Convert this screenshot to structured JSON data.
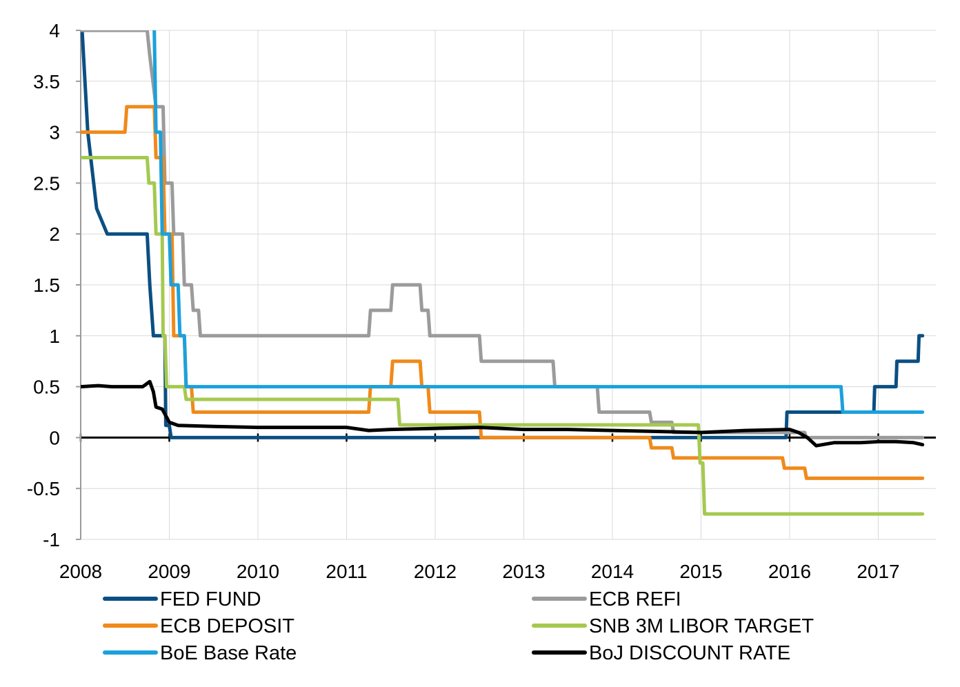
{
  "chart_data": {
    "type": "line",
    "title": "",
    "xlabel": "",
    "ylabel": "",
    "xlim": [
      2008.0,
      2017.65
    ],
    "ylim": [
      -1,
      4
    ],
    "x_ticks": [
      "2008",
      "2009",
      "2010",
      "2011",
      "2012",
      "2013",
      "2014",
      "2015",
      "2016",
      "2017"
    ],
    "y_ticks": [
      "4",
      "3.5",
      "3",
      "2.5",
      "2",
      "1.5",
      "1",
      "0.5",
      "0",
      "-0.5",
      "-1"
    ],
    "grid": true,
    "legend_position": "bottom",
    "series": [
      {
        "name": "FED FUND",
        "color": "#0b4f82",
        "points": [
          [
            2008.0,
            4.25
          ],
          [
            2008.08,
            3.0
          ],
          [
            2008.18,
            2.25
          ],
          [
            2008.3,
            2.0
          ],
          [
            2008.75,
            2.0
          ],
          [
            2008.78,
            1.5
          ],
          [
            2008.82,
            1.0
          ],
          [
            2008.95,
            1.0
          ],
          [
            2008.96,
            0.12
          ],
          [
            2009.0,
            0.12
          ],
          [
            2009.02,
            0.0
          ],
          [
            2015.96,
            0.0
          ],
          [
            2015.97,
            0.25
          ],
          [
            2016.95,
            0.25
          ],
          [
            2016.96,
            0.5
          ],
          [
            2017.2,
            0.5
          ],
          [
            2017.21,
            0.75
          ],
          [
            2017.45,
            0.75
          ],
          [
            2017.46,
            1.0
          ],
          [
            2017.5,
            1.0
          ]
        ]
      },
      {
        "name": "ECB REFI",
        "color": "#9b9b9b",
        "points": [
          [
            2008.0,
            4.0
          ],
          [
            2008.5,
            4.0
          ],
          [
            2008.75,
            4.0
          ],
          [
            2008.78,
            3.75
          ],
          [
            2008.85,
            3.25
          ],
          [
            2008.93,
            3.25
          ],
          [
            2008.95,
            2.5
          ],
          [
            2009.03,
            2.5
          ],
          [
            2009.05,
            2.0
          ],
          [
            2009.15,
            2.0
          ],
          [
            2009.17,
            1.5
          ],
          [
            2009.25,
            1.5
          ],
          [
            2009.27,
            1.25
          ],
          [
            2009.33,
            1.25
          ],
          [
            2009.35,
            1.0
          ],
          [
            2011.25,
            1.0
          ],
          [
            2011.27,
            1.25
          ],
          [
            2011.5,
            1.25
          ],
          [
            2011.52,
            1.5
          ],
          [
            2011.83,
            1.5
          ],
          [
            2011.85,
            1.25
          ],
          [
            2011.92,
            1.25
          ],
          [
            2011.94,
            1.0
          ],
          [
            2012.5,
            1.0
          ],
          [
            2012.52,
            0.75
          ],
          [
            2013.33,
            0.75
          ],
          [
            2013.35,
            0.5
          ],
          [
            2013.83,
            0.5
          ],
          [
            2013.85,
            0.25
          ],
          [
            2014.42,
            0.25
          ],
          [
            2014.44,
            0.15
          ],
          [
            2014.67,
            0.15
          ],
          [
            2014.69,
            0.05
          ],
          [
            2016.17,
            0.05
          ],
          [
            2016.19,
            0.0
          ],
          [
            2017.5,
            0.0
          ]
        ]
      },
      {
        "name": "ECB DEPOSIT",
        "color": "#f08a1a",
        "points": [
          [
            2008.0,
            3.0
          ],
          [
            2008.5,
            3.0
          ],
          [
            2008.52,
            3.25
          ],
          [
            2008.83,
            3.25
          ],
          [
            2008.85,
            2.75
          ],
          [
            2008.93,
            2.75
          ],
          [
            2008.95,
            2.0
          ],
          [
            2009.03,
            2.0
          ],
          [
            2009.05,
            1.0
          ],
          [
            2009.17,
            1.0
          ],
          [
            2009.19,
            0.5
          ],
          [
            2009.25,
            0.5
          ],
          [
            2009.27,
            0.25
          ],
          [
            2011.25,
            0.25
          ],
          [
            2011.27,
            0.5
          ],
          [
            2011.5,
            0.5
          ],
          [
            2011.52,
            0.75
          ],
          [
            2011.83,
            0.75
          ],
          [
            2011.85,
            0.5
          ],
          [
            2011.92,
            0.5
          ],
          [
            2011.94,
            0.25
          ],
          [
            2012.5,
            0.25
          ],
          [
            2012.52,
            0.0
          ],
          [
            2014.42,
            0.0
          ],
          [
            2014.44,
            -0.1
          ],
          [
            2014.67,
            -0.1
          ],
          [
            2014.69,
            -0.2
          ],
          [
            2015.92,
            -0.2
          ],
          [
            2015.94,
            -0.3
          ],
          [
            2016.17,
            -0.3
          ],
          [
            2016.19,
            -0.4
          ],
          [
            2017.5,
            -0.4
          ]
        ]
      },
      {
        "name": "SNB 3M LIBOR TARGET",
        "color": "#a5c94f",
        "points": [
          [
            2008.0,
            2.75
          ],
          [
            2008.75,
            2.75
          ],
          [
            2008.77,
            2.5
          ],
          [
            2008.83,
            2.5
          ],
          [
            2008.85,
            2.0
          ],
          [
            2008.92,
            2.0
          ],
          [
            2008.93,
            1.0
          ],
          [
            2008.95,
            1.0
          ],
          [
            2008.97,
            0.5
          ],
          [
            2009.17,
            0.5
          ],
          [
            2009.19,
            0.375
          ],
          [
            2011.58,
            0.375
          ],
          [
            2011.6,
            0.125
          ],
          [
            2014.97,
            0.125
          ],
          [
            2014.99,
            -0.25
          ],
          [
            2015.02,
            -0.25
          ],
          [
            2015.04,
            -0.75
          ],
          [
            2017.5,
            -0.75
          ]
        ]
      },
      {
        "name": "BoE Base Rate",
        "color": "#1ba1dc",
        "points": [
          [
            2008.83,
            4.0
          ],
          [
            2008.85,
            3.0
          ],
          [
            2008.9,
            3.0
          ],
          [
            2008.92,
            2.0
          ],
          [
            2009.0,
            2.0
          ],
          [
            2009.02,
            1.5
          ],
          [
            2009.1,
            1.5
          ],
          [
            2009.12,
            1.0
          ],
          [
            2009.17,
            1.0
          ],
          [
            2009.19,
            0.5
          ],
          [
            2016.58,
            0.5
          ],
          [
            2016.6,
            0.25
          ],
          [
            2017.5,
            0.25
          ]
        ]
      },
      {
        "name": "BoJ DISCOUNT RATE",
        "color": "#000000",
        "points": [
          [
            2008.0,
            0.5
          ],
          [
            2008.2,
            0.51
          ],
          [
            2008.35,
            0.5
          ],
          [
            2008.5,
            0.5
          ],
          [
            2008.7,
            0.5
          ],
          [
            2008.78,
            0.55
          ],
          [
            2008.82,
            0.45
          ],
          [
            2008.85,
            0.3
          ],
          [
            2008.92,
            0.28
          ],
          [
            2008.97,
            0.2
          ],
          [
            2009.0,
            0.15
          ],
          [
            2009.1,
            0.12
          ],
          [
            2009.5,
            0.11
          ],
          [
            2010.0,
            0.1
          ],
          [
            2010.5,
            0.1
          ],
          [
            2011.0,
            0.1
          ],
          [
            2011.25,
            0.07
          ],
          [
            2011.5,
            0.08
          ],
          [
            2012.0,
            0.09
          ],
          [
            2012.5,
            0.1
          ],
          [
            2013.0,
            0.08
          ],
          [
            2013.5,
            0.08
          ],
          [
            2014.0,
            0.07
          ],
          [
            2014.5,
            0.06
          ],
          [
            2015.0,
            0.05
          ],
          [
            2015.5,
            0.07
          ],
          [
            2016.0,
            0.08
          ],
          [
            2016.1,
            0.05
          ],
          [
            2016.2,
            0.0
          ],
          [
            2016.3,
            -0.08
          ],
          [
            2016.5,
            -0.05
          ],
          [
            2016.8,
            -0.05
          ],
          [
            2017.0,
            -0.04
          ],
          [
            2017.2,
            -0.04
          ],
          [
            2017.4,
            -0.05
          ],
          [
            2017.5,
            -0.07
          ]
        ]
      }
    ]
  }
}
